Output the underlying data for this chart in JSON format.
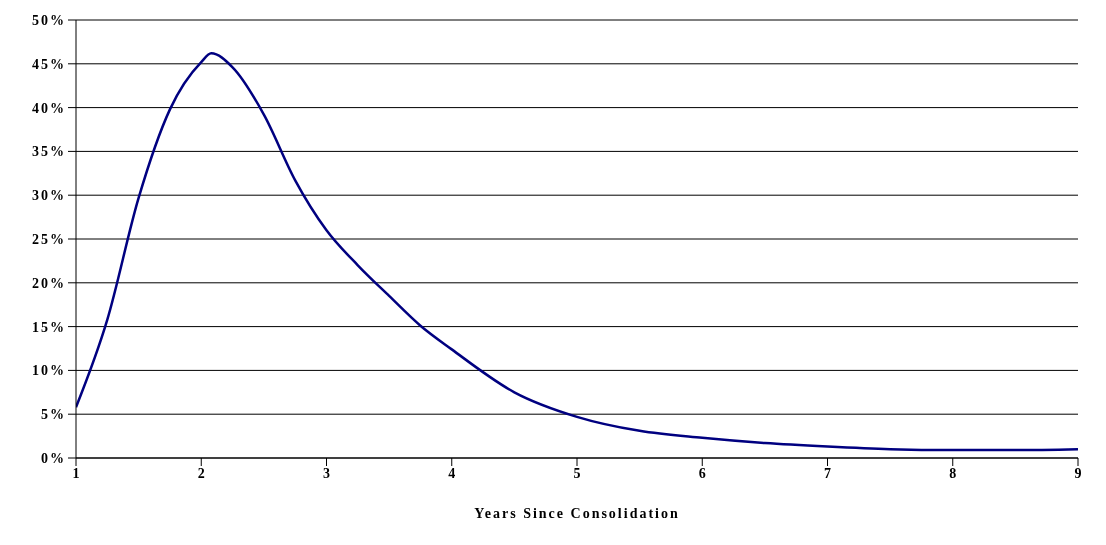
{
  "chart_data": {
    "type": "line",
    "xlabel": "Years Since Consolidation",
    "xlim": [
      1,
      9
    ],
    "xticks": [
      1,
      2,
      3,
      4,
      5,
      6,
      7,
      8,
      9
    ],
    "ylim": [
      0,
      50
    ],
    "yticks": [
      {
        "value": 0,
        "label": "0%"
      },
      {
        "value": 5,
        "label": "5%"
      },
      {
        "value": 10,
        "label": "10%"
      },
      {
        "value": 15,
        "label": "15%"
      },
      {
        "value": 20,
        "label": "20%"
      },
      {
        "value": 25,
        "label": "25%"
      },
      {
        "value": 30,
        "label": "30%"
      },
      {
        "value": 35,
        "label": "35%"
      },
      {
        "value": 40,
        "label": "40%"
      },
      {
        "value": 45,
        "label": "45%"
      },
      {
        "value": 50,
        "label": "50%"
      }
    ],
    "grid": "y",
    "marker": "none",
    "line_style": "solid",
    "series": [
      {
        "color": "#000080",
        "x": [
          1,
          1.25,
          1.5,
          1.75,
          2,
          2.08,
          2.25,
          2.5,
          2.75,
          3,
          3.25,
          3.5,
          3.75,
          4,
          4.5,
          5,
          5.5,
          6,
          6.5,
          7,
          7.5,
          8,
          8.5,
          9
        ],
        "values": [
          5.8,
          15.8,
          29.7,
          39.8,
          45.2,
          46.2,
          44.6,
          39.2,
          31.7,
          26,
          22,
          18.5,
          15.1,
          12.4,
          7.5,
          4.7,
          3.1,
          2.3,
          1.7,
          1.3,
          1,
          0.9,
          0.9,
          1
        ]
      }
    ]
  }
}
